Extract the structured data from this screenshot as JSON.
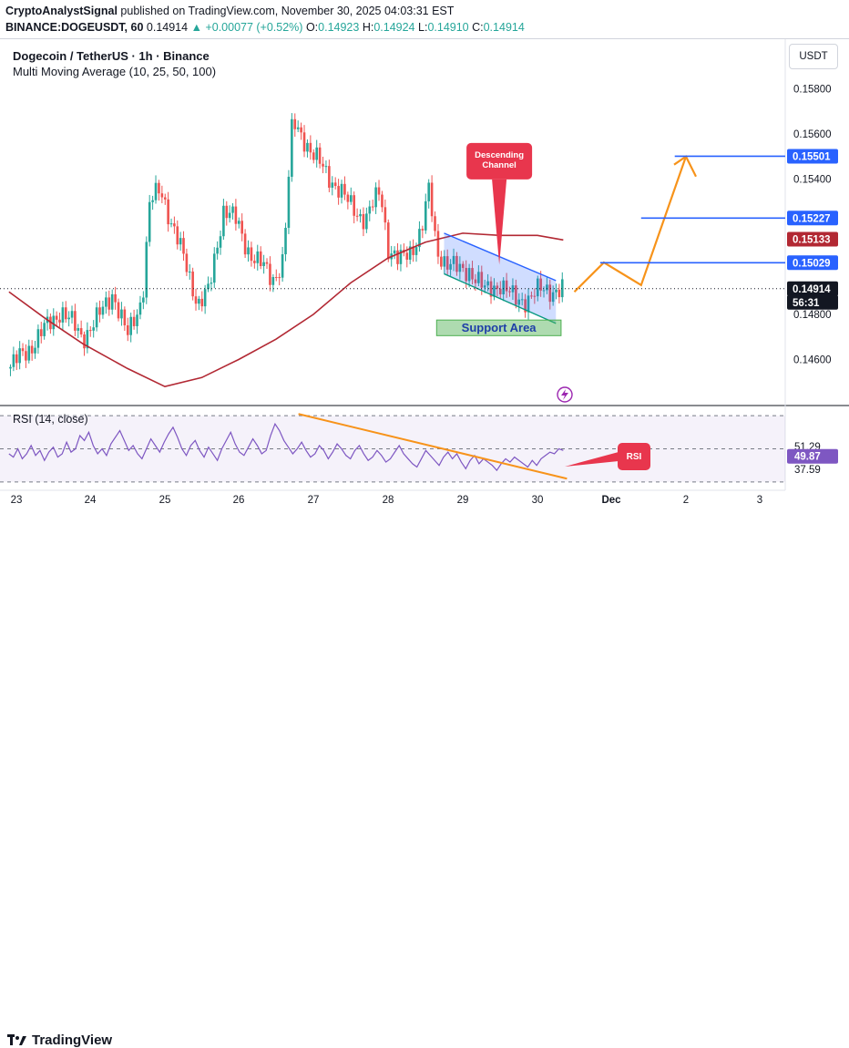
{
  "header": {
    "author": "CryptoAnalystSignal",
    "published_text": "published on TradingView.com, November 30, 2025 04:03:31 EST",
    "symbol_line": "BINANCE:DOGEUSDT, 60",
    "last": "0.14914",
    "change": "+0.00077 (+0.52%)",
    "o_label": "O:",
    "o": "0.14923",
    "h_label": "H:",
    "h": "0.14924",
    "l_label": "L:",
    "l": "0.14910",
    "c_label": "C:",
    "c": "0.14914"
  },
  "legend": {
    "title": "Dogecoin / TetherUS · 1h · Binance",
    "indicator": "Multi Moving Average (10, 25, 50, 100)"
  },
  "currency_button": "USDT",
  "rsi_legend": "RSI (14, close)",
  "footer_logo": "TradingView",
  "colors": {
    "up": "#26a69a",
    "down": "#ef5350",
    "ma": "#b22833",
    "rsi": "#7e57c2",
    "trend": "#f7931a",
    "level": "#2962ff",
    "annotation": "#e8364d",
    "support": "#4caf50"
  },
  "chart_data": {
    "type": "candlestick",
    "symbol": "DOGEUSDT",
    "interval": "60",
    "price_axis": {
      "ticks": [
        "0.15800",
        "0.15600",
        "0.15400",
        "0.14800",
        "0.14600"
      ],
      "min": 0.144,
      "max": 0.1602
    },
    "time_axis": {
      "ticks": [
        "23",
        "24",
        "25",
        "26",
        "27",
        "28",
        "29",
        "30",
        "Dec",
        "2",
        "3"
      ]
    },
    "price_labels": [
      {
        "text": "0.15501",
        "value": 0.15501,
        "kind": "level"
      },
      {
        "text": "0.15227",
        "value": 0.15227,
        "kind": "level"
      },
      {
        "text": "0.15133",
        "value": 0.15133,
        "kind": "ma"
      },
      {
        "text": "0.15029",
        "value": 0.15029,
        "kind": "level"
      },
      {
        "text": "0.14914",
        "value": 0.14914,
        "kind": "last"
      },
      {
        "text": "56:31",
        "value": 0.1483,
        "kind": "countdown"
      }
    ],
    "annotations": {
      "channel_label": "Descending Channel",
      "support_label": "Support Area",
      "rsi_label": "RSI"
    },
    "moving_average_path": [
      [
        22.9,
        0.149
      ],
      [
        23.4,
        0.1478
      ],
      [
        23.9,
        0.1467
      ],
      [
        24.5,
        0.1456
      ],
      [
        25.0,
        0.1448
      ],
      [
        25.5,
        0.1452
      ],
      [
        26.0,
        0.146
      ],
      [
        26.5,
        0.1469
      ],
      [
        27.0,
        0.148
      ],
      [
        27.5,
        0.1494
      ],
      [
        28.0,
        0.1505
      ],
      [
        28.5,
        0.1512
      ],
      [
        29.0,
        0.1516
      ],
      [
        29.5,
        0.1515
      ],
      [
        30.0,
        0.1515
      ],
      [
        30.35,
        0.1513
      ]
    ],
    "projection_path": [
      [
        30.5,
        0.149
      ],
      [
        30.9,
        0.1503
      ],
      [
        31.4,
        0.1493
      ],
      [
        32.0,
        0.155
      ],
      [
        32.1,
        0.154
      ]
    ],
    "rsi": {
      "ticks": [
        "51.29",
        "49.87",
        "37.59"
      ],
      "min": 25,
      "max": 75,
      "values": [
        47,
        45,
        50,
        44,
        47,
        52,
        46,
        49,
        43,
        48,
        51,
        45,
        47,
        54,
        48,
        50,
        58,
        55,
        60,
        52,
        47,
        50,
        46,
        53,
        57,
        61,
        55,
        49,
        52,
        47,
        44,
        50,
        56,
        52,
        48,
        54,
        59,
        63,
        57,
        50,
        46,
        52,
        55,
        49,
        45,
        51,
        47,
        43,
        50,
        55,
        60,
        53,
        48,
        46,
        51,
        56,
        52,
        47,
        49,
        58,
        65,
        61,
        55,
        51,
        47,
        50,
        54,
        49,
        45,
        47,
        52,
        49,
        44,
        48,
        53,
        50,
        46,
        44,
        49,
        52,
        47,
        43,
        45,
        49,
        46,
        42,
        44,
        48,
        52,
        47,
        44,
        41,
        39,
        44,
        49,
        46,
        43,
        40,
        45,
        48,
        44,
        47,
        42,
        38,
        43,
        46,
        41,
        44,
        42,
        40,
        37,
        41,
        44,
        42,
        45,
        43,
        41,
        39,
        43,
        40,
        44,
        46,
        48,
        47,
        50,
        49
      ]
    }
  }
}
